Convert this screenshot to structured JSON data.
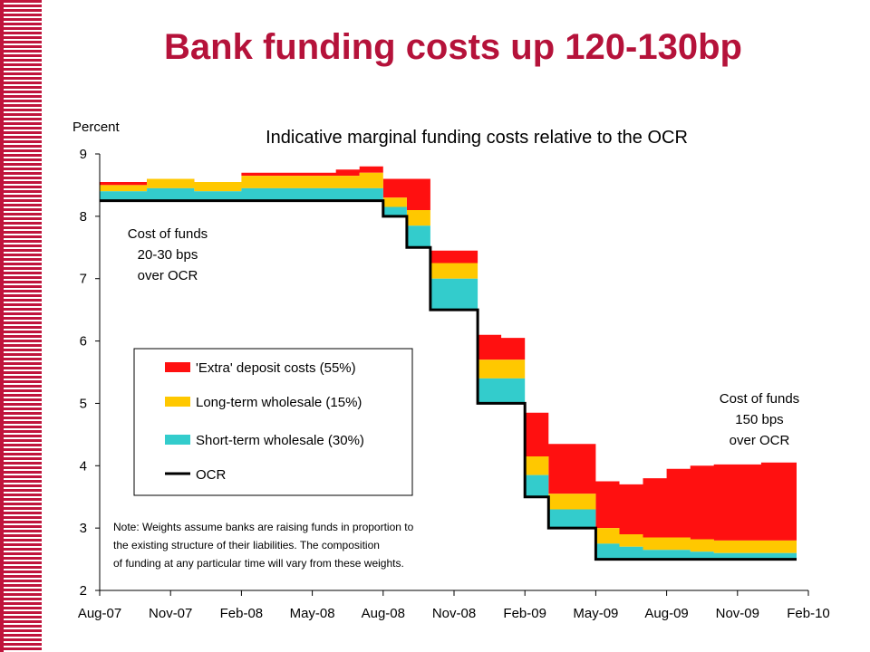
{
  "slide": {
    "title": "Bank funding costs up 120-130bp"
  },
  "colors": {
    "accent": "#b5123a",
    "extra": "#ff1010",
    "long_term": "#ffc800",
    "short_term": "#33cccc",
    "ocr": "#000000"
  },
  "chart_data": {
    "type": "area",
    "title": "Indicative marginal funding costs relative to the OCR",
    "ylabel": "Percent",
    "xlabel": "",
    "ylim": [
      2,
      9
    ],
    "yticks": [
      2,
      3,
      4,
      5,
      6,
      7,
      8,
      9
    ],
    "xticks": [
      "Aug-07",
      "Nov-07",
      "Feb-08",
      "May-08",
      "Aug-08",
      "Nov-08",
      "Feb-09",
      "May-09",
      "Aug-09",
      "Nov-09",
      "Feb-10"
    ],
    "x": [
      "Aug-07",
      "Oct-07",
      "Dec-07",
      "Feb-08",
      "Apr-08",
      "Jun-08",
      "Jul-08",
      "Aug-08",
      "Sep-08",
      "Oct-08",
      "Nov-08",
      "Dec-08",
      "Jan-09",
      "Feb-09",
      "Mar-09",
      "Apr-09",
      "May-09",
      "Jun-09",
      "Jul-09",
      "Aug-09",
      "Sep-09",
      "Oct-09",
      "Nov-09",
      "Dec-09",
      "Jan-10"
    ],
    "series": [
      {
        "name": "OCR",
        "values": [
          8.25,
          8.25,
          8.25,
          8.25,
          8.25,
          8.25,
          8.25,
          8.0,
          7.5,
          6.5,
          6.5,
          5.0,
          5.0,
          3.5,
          3.0,
          3.0,
          2.5,
          2.5,
          2.5,
          2.5,
          2.5,
          2.5,
          2.5,
          2.5,
          2.5
        ]
      },
      {
        "name": "Short-term wholesale (30%)",
        "values": [
          8.4,
          8.45,
          8.4,
          8.45,
          8.45,
          8.45,
          8.45,
          8.15,
          7.85,
          7.0,
          7.0,
          5.4,
          5.4,
          3.85,
          3.3,
          3.3,
          2.75,
          2.7,
          2.65,
          2.65,
          2.62,
          2.6,
          2.6,
          2.6,
          2.6
        ]
      },
      {
        "name": "Long-term wholesale (15%)",
        "values": [
          8.5,
          8.6,
          8.55,
          8.65,
          8.65,
          8.65,
          8.7,
          8.3,
          8.1,
          7.25,
          7.25,
          5.7,
          5.7,
          4.15,
          3.55,
          3.55,
          3.0,
          2.9,
          2.85,
          2.85,
          2.82,
          2.8,
          2.8,
          2.8,
          2.8
        ]
      },
      {
        "name": "'Extra' deposit costs (55%)",
        "values": [
          8.55,
          8.55,
          8.5,
          8.7,
          8.7,
          8.75,
          8.8,
          8.6,
          8.6,
          7.45,
          7.45,
          6.1,
          6.05,
          4.85,
          4.35,
          4.35,
          3.75,
          3.7,
          3.8,
          3.95,
          4.0,
          4.02,
          4.02,
          4.05,
          4.05
        ]
      }
    ],
    "legend": {
      "placement": "center-left",
      "entries": [
        "'Extra' deposit costs (55%)",
        "Long-term wholesale (15%)",
        "Short-term wholesale (30%)",
        "OCR"
      ]
    },
    "annotations": {
      "left_lines": [
        "Cost of funds",
        "20-30 bps",
        "over OCR"
      ],
      "right_lines": [
        "Cost of funds",
        "150 bps",
        "over OCR"
      ],
      "note_lines": [
        "Note: Weights assume banks are raising funds in proportion to",
        "the existing structure of their liabilities.  The composition",
        "of funding at any particular time will vary from these weights."
      ]
    },
    "grid": false
  }
}
